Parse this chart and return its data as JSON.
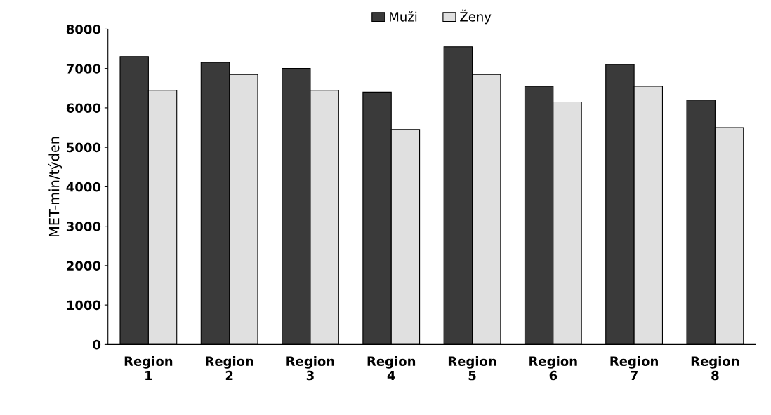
{
  "chart_data": {
    "type": "bar",
    "ylabel": "MET-min/týden",
    "categories": [
      "Region\n1",
      "Region\n2",
      "Region\n3",
      "Region\n4",
      "Region\n5",
      "Region\n6",
      "Region\n7",
      "Region\n8"
    ],
    "series": [
      {
        "name": "Muži",
        "color": "#3a3a3a",
        "values": [
          7300,
          7150,
          7000,
          6400,
          7550,
          6550,
          7100,
          6200
        ]
      },
      {
        "name": "Ženy",
        "color": "#e0e0e0",
        "values": [
          6450,
          6850,
          6450,
          5450,
          6850,
          6150,
          6550,
          5500
        ]
      }
    ],
    "ylim": [
      0,
      8000
    ],
    "yticks": [
      0,
      1000,
      2000,
      3000,
      4000,
      5000,
      6000,
      7000,
      8000
    ],
    "grid": false,
    "legend": "top"
  }
}
